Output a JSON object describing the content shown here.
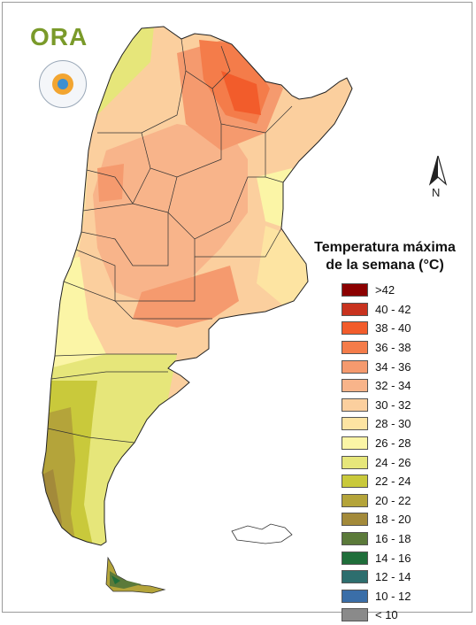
{
  "logo": {
    "text": "ORA"
  },
  "north_label": "N",
  "legend": {
    "title_line1": "Temperatura máxima",
    "title_line2": "de la semana (°C)",
    "items": [
      {
        "label": ">42",
        "color": "#8b0000"
      },
      {
        "label": "40 - 42",
        "color": "#c8321e"
      },
      {
        "label": "38 - 40",
        "color": "#f25c2b"
      },
      {
        "label": "36 - 38",
        "color": "#f47c4a"
      },
      {
        "label": "34 - 36",
        "color": "#f59a6e"
      },
      {
        "label": "32 - 34",
        "color": "#f8b48a"
      },
      {
        "label": "30 - 32",
        "color": "#fbcf9e"
      },
      {
        "label": "28 - 30",
        "color": "#fde4a2"
      },
      {
        "label": "26 - 28",
        "color": "#fbf5a6"
      },
      {
        "label": "24 - 26",
        "color": "#e6e67a"
      },
      {
        "label": "22 - 24",
        "color": "#c9c93b"
      },
      {
        "label": "20 - 22",
        "color": "#b4a43a"
      },
      {
        "label": "18 - 20",
        "color": "#a38a3a"
      },
      {
        "label": "16 - 18",
        "color": "#5b7a3a"
      },
      {
        "label": "14 - 16",
        "color": "#1f6e3a"
      },
      {
        "label": "12 - 14",
        "color": "#2d6e6e"
      },
      {
        "label": "10 - 12",
        "color": "#3a6ea8"
      },
      {
        "label": "< 10",
        "color": "#8a8a8a"
      }
    ]
  }
}
